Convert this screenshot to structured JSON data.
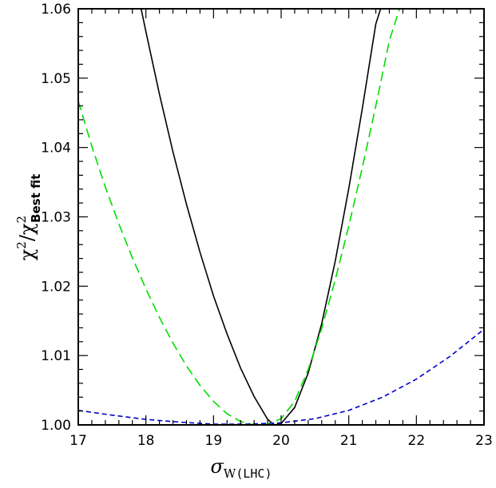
{
  "chart_data": {
    "type": "line",
    "title": "",
    "xlabel": {
      "symbol": "σ",
      "subscript": "W",
      "suffix": "(LHC)"
    },
    "ylabel": {
      "num": "χ",
      "num_sup": "2",
      "sep": "/",
      "den": "χ",
      "den_sup": "2",
      "den_sub": "Best fit"
    },
    "xlim": [
      17,
      23
    ],
    "ylim": [
      1.0,
      1.06
    ],
    "x_ticks": [
      "17",
      "18",
      "19",
      "20",
      "21",
      "22",
      "23"
    ],
    "y_ticks": [
      "1.00",
      "1.01",
      "1.02",
      "1.03",
      "1.04",
      "1.05",
      "1.06"
    ],
    "grid": false,
    "legend": "none",
    "series": [
      {
        "color": "#000000",
        "style": "solid",
        "x": [
          17.93,
          18.0,
          18.2,
          18.4,
          18.6,
          18.8,
          19.0,
          19.2,
          19.4,
          19.6,
          19.8,
          19.9,
          20.0,
          20.2,
          20.4,
          20.6,
          20.8,
          21.0,
          21.2,
          21.4,
          21.5
        ],
        "y": [
          1.06,
          1.0567,
          1.0477,
          1.0394,
          1.0318,
          1.0249,
          1.0186,
          1.0131,
          1.0082,
          1.0041,
          1.0008,
          1.0,
          1.0002,
          1.0025,
          1.0075,
          1.0146,
          1.0236,
          1.0341,
          1.0456,
          1.0578,
          1.0609
        ]
      },
      {
        "color": "#00dd00",
        "style": "dashed",
        "x": [
          17.0,
          17.2,
          17.4,
          17.6,
          17.8,
          18.0,
          18.2,
          18.4,
          18.6,
          18.8,
          19.0,
          19.2,
          19.4,
          19.6,
          19.8,
          20.0,
          20.2,
          20.4,
          20.6,
          20.8,
          21.0,
          21.2,
          21.4,
          21.6,
          21.75
        ],
        "y": [
          1.0467,
          1.0402,
          1.0343,
          1.029,
          1.0241,
          1.0196,
          1.0155,
          1.0118,
          1.0085,
          1.0057,
          1.0034,
          1.0016,
          1.0005,
          1.0,
          1.0001,
          1.0009,
          1.0034,
          1.008,
          1.0139,
          1.0209,
          1.0287,
          1.0371,
          1.046,
          1.0554,
          1.06
        ]
      },
      {
        "color": "#0000cc",
        "style": "dashed",
        "x": [
          17.0,
          17.5,
          18.0,
          18.5,
          19.0,
          19.5,
          20.0,
          20.5,
          21.0,
          21.5,
          22.0,
          22.5,
          23.0
        ],
        "y": [
          1.0021,
          1.0014,
          1.0008,
          1.0004,
          1.0001,
          1.0001,
          1.0003,
          1.0009,
          1.0021,
          1.004,
          1.0066,
          1.0099,
          1.0138
        ]
      }
    ]
  }
}
